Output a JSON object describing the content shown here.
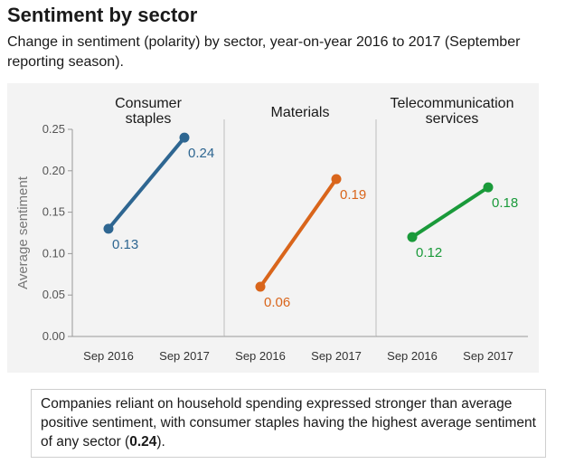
{
  "title": "Sentiment by sector",
  "subtitle": "Change in sentiment (polarity) by sector, year-on-year 2016 to 2017 (September reporting season).",
  "note": {
    "text_before": "Companies reliant on household spending expressed stronger than average positive sentiment, with consumer staples having the highest average sentiment of any sector (",
    "highlight": "0.24",
    "text_after": ")."
  },
  "chart_data": {
    "type": "line",
    "ylabel": "Average sentiment",
    "ylim": [
      0,
      0.25
    ],
    "yticks": [
      "0.00",
      "0.05",
      "0.10",
      "0.15",
      "0.20",
      "0.25"
    ],
    "categories": [
      "Sep 2016",
      "Sep 2017"
    ],
    "grid": false,
    "panels": [
      {
        "name_lines": [
          "Consumer",
          "staples"
        ],
        "color": "#2e6691",
        "values": [
          0.13,
          0.24
        ],
        "value_labels": [
          "0.13",
          "0.24"
        ]
      },
      {
        "name_lines": [
          "Materials"
        ],
        "color": "#d9651b",
        "values": [
          0.06,
          0.19
        ],
        "value_labels": [
          "0.06",
          "0.19"
        ]
      },
      {
        "name_lines": [
          "Telecommunication",
          "services"
        ],
        "color": "#1a9a3a",
        "values": [
          0.12,
          0.18
        ],
        "value_labels": [
          "0.12",
          "0.18"
        ]
      }
    ]
  }
}
